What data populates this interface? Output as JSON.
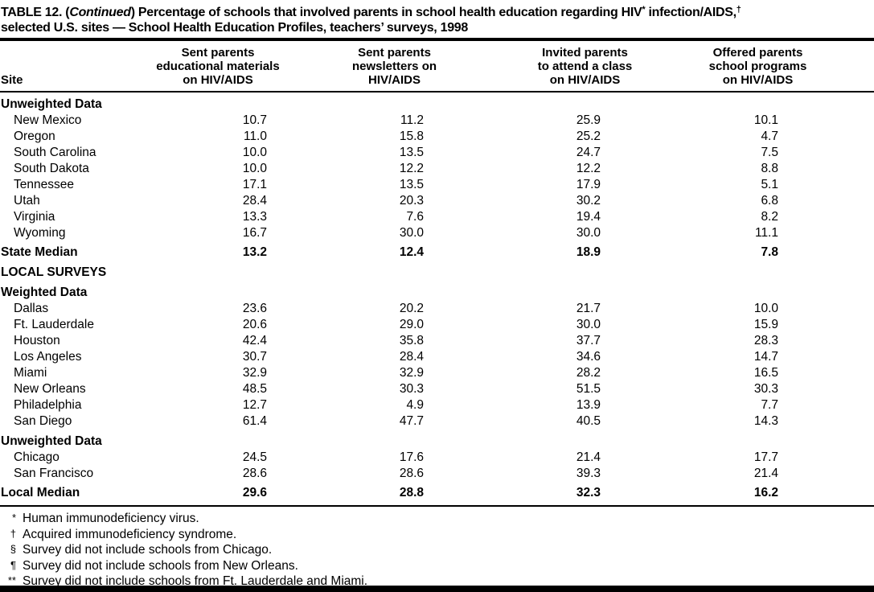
{
  "colors": {
    "text": "#000000",
    "background": "#ffffff"
  },
  "title": {
    "line1_pre": "TABLE 12. (",
    "line1_continued": "Continued",
    "line1_mid": ") Percentage of schools that involved parents in school health education regarding HIV",
    "line1_sup1": "*",
    "line1_aids": " infection/AIDS,",
    "line1_sup2": "†",
    "line2": "selected U.S. sites — School Health Education Profiles, teachers’ surveys, 1998"
  },
  "table": {
    "site_header": "Site",
    "columns": [
      {
        "lines": [
          "Sent parents",
          "educational materials",
          "on HIV/AIDS"
        ]
      },
      {
        "lines": [
          "Sent parents",
          "newsletters on",
          "HIV/AIDS"
        ]
      },
      {
        "lines": [
          "Invited parents",
          "to attend a class",
          "on HIV/AIDS"
        ]
      },
      {
        "lines": [
          "Offered parents",
          "school programs",
          "on HIV/AIDS"
        ]
      }
    ],
    "rows": [
      {
        "type": "section",
        "label": "Unweighted Data"
      },
      {
        "type": "data",
        "site": "New Mexico",
        "values": [
          "10.7",
          "11.2",
          "25.9",
          "10.1"
        ]
      },
      {
        "type": "data",
        "site": "Oregon",
        "values": [
          "11.0",
          "15.8",
          "25.2",
          "4.7"
        ]
      },
      {
        "type": "data",
        "site": "South Carolina",
        "values": [
          "10.0",
          "13.5",
          "24.7",
          "7.5"
        ]
      },
      {
        "type": "data",
        "site": "South Dakota",
        "values": [
          "10.0",
          "12.2",
          "12.2",
          "8.8"
        ]
      },
      {
        "type": "data",
        "site": "Tennessee",
        "values": [
          "17.1",
          "13.5",
          "17.9",
          "5.1"
        ]
      },
      {
        "type": "data",
        "site": "Utah",
        "values": [
          "28.4",
          "20.3",
          "30.2",
          "6.8"
        ]
      },
      {
        "type": "data",
        "site": "Virginia",
        "values": [
          "13.3",
          "7.6",
          "19.4",
          "8.2"
        ]
      },
      {
        "type": "data",
        "site": "Wyoming",
        "values": [
          "16.7",
          "30.0",
          "30.0",
          "11.1"
        ]
      },
      {
        "type": "median",
        "site": "State Median",
        "values": [
          "13.2",
          "12.4",
          "18.9",
          "7.8"
        ]
      },
      {
        "type": "section",
        "label": "LOCAL SURVEYS"
      },
      {
        "type": "section",
        "label": "Weighted Data"
      },
      {
        "type": "data",
        "site": "Dallas",
        "values": [
          "23.6",
          "20.2",
          "21.7",
          "10.0"
        ]
      },
      {
        "type": "data",
        "site": "Ft. Lauderdale",
        "values": [
          "20.6",
          "29.0",
          "30.0",
          "15.9"
        ]
      },
      {
        "type": "data",
        "site": "Houston",
        "values": [
          "42.4",
          "35.8",
          "37.7",
          "28.3"
        ]
      },
      {
        "type": "data",
        "site": "Los Angeles",
        "values": [
          "30.7",
          "28.4",
          "34.6",
          "14.7"
        ]
      },
      {
        "type": "data",
        "site": "Miami",
        "values": [
          "32.9",
          "32.9",
          "28.2",
          "16.5"
        ]
      },
      {
        "type": "data",
        "site": "New Orleans",
        "values": [
          "48.5",
          "30.3",
          "51.5",
          "30.3"
        ]
      },
      {
        "type": "data",
        "site": "Philadelphia",
        "values": [
          "12.7",
          "4.9",
          "13.9",
          "7.7"
        ]
      },
      {
        "type": "data",
        "site": "San Diego",
        "values": [
          "61.4",
          "47.7",
          "40.5",
          "14.3"
        ]
      },
      {
        "type": "section",
        "label": "Unweighted Data"
      },
      {
        "type": "data",
        "site": "Chicago",
        "values": [
          "24.5",
          "17.6",
          "21.4",
          "17.7"
        ]
      },
      {
        "type": "data",
        "site": "San Francisco",
        "values": [
          "28.6",
          "28.6",
          "39.3",
          "21.4"
        ]
      },
      {
        "type": "median",
        "site": "Local Median",
        "values": [
          "29.6",
          "28.8",
          "32.3",
          "16.2"
        ]
      }
    ]
  },
  "footnotes": [
    {
      "marker": "*",
      "text": "Human immunodeficiency virus."
    },
    {
      "marker": "†",
      "text": "Acquired immunodeficiency syndrome."
    },
    {
      "marker": "§",
      "text": "Survey did not include schools from Chicago."
    },
    {
      "marker": "¶",
      "text": "Survey did not include schools from New Orleans."
    },
    {
      "marker": "**",
      "text": "Survey did not include schools from Ft. Lauderdale and Miami."
    }
  ]
}
